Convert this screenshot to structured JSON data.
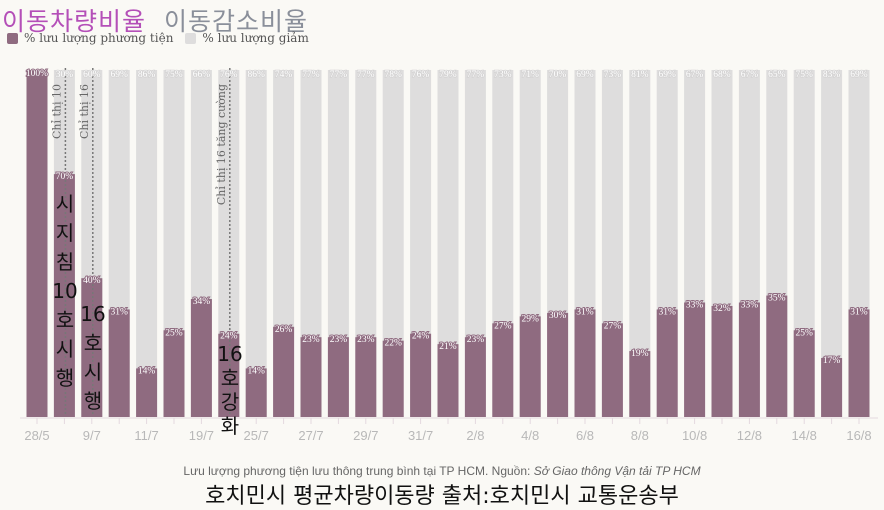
{
  "header": {
    "title_primary": "이동차량비율",
    "title_secondary": "이동감소비율"
  },
  "legend": [
    {
      "label": "% lưu lượng phương tiện",
      "color": "#8f6b80"
    },
    {
      "label": "% lưu lượng giảm",
      "color": "#dedddd"
    }
  ],
  "chart_data": {
    "type": "bar",
    "stacked": true,
    "ylim": [
      0,
      100
    ],
    "grid": false,
    "legend_placement": "top-left",
    "categories": [
      "28/5",
      "",
      "9/7",
      "",
      "11/7",
      "",
      "19/7",
      "",
      "25/7",
      "",
      "27/7",
      "",
      "29/7",
      "",
      "31/7",
      "",
      "2/8",
      "",
      "4/8",
      "",
      "6/8",
      "",
      "8/8",
      "",
      "10/8",
      "",
      "12/8",
      "",
      "14/8",
      "",
      "16/8"
    ],
    "tick_labels": [
      "28/5",
      "9/7",
      "11/7",
      "19/7",
      "25/7",
      "27/7",
      "29/7",
      "31/7",
      "2/8",
      "4/8",
      "6/8",
      "8/8",
      "10/8",
      "12/8",
      "14/8",
      "16/8"
    ],
    "series": [
      {
        "name": "% lưu lượng phương tiện",
        "color": "#8f6b80",
        "values": [
          100,
          70,
          40,
          31,
          14,
          25,
          34,
          24,
          14,
          26,
          23,
          23,
          23,
          22,
          24,
          21,
          23,
          27,
          29,
          30,
          31,
          27,
          19,
          31,
          33,
          32,
          33,
          35,
          25,
          17,
          31
        ]
      },
      {
        "name": "% lưu lượng giảm",
        "color": "#dedddd",
        "values": [
          0,
          30,
          60,
          69,
          86,
          75,
          66,
          76,
          86,
          74,
          77,
          77,
          77,
          78,
          76,
          79,
          77,
          73,
          71,
          70,
          69,
          73,
          81,
          69,
          67,
          68,
          67,
          65,
          75,
          83,
          69
        ]
      }
    ],
    "annotations": [
      {
        "bar_index": 1,
        "label": "Chỉ thị 10",
        "overlay": "시지침10호시행"
      },
      {
        "bar_index": 2,
        "label": "Chỉ thị 16",
        "overlay": "16호시행"
      },
      {
        "bar_index": 7,
        "label": "Chỉ thị 16 tăng cường",
        "overlay": "16호강화"
      }
    ]
  },
  "caption": {
    "text": "Lưu lượng phương tiện lưu thông trung bình tại TP HCM. Nguồn: ",
    "source": "Sở Giao thông Vận tải TP HCM"
  },
  "caption_ko": "호치민시 평균차량이동량  출처:호치민시 교통운송부"
}
